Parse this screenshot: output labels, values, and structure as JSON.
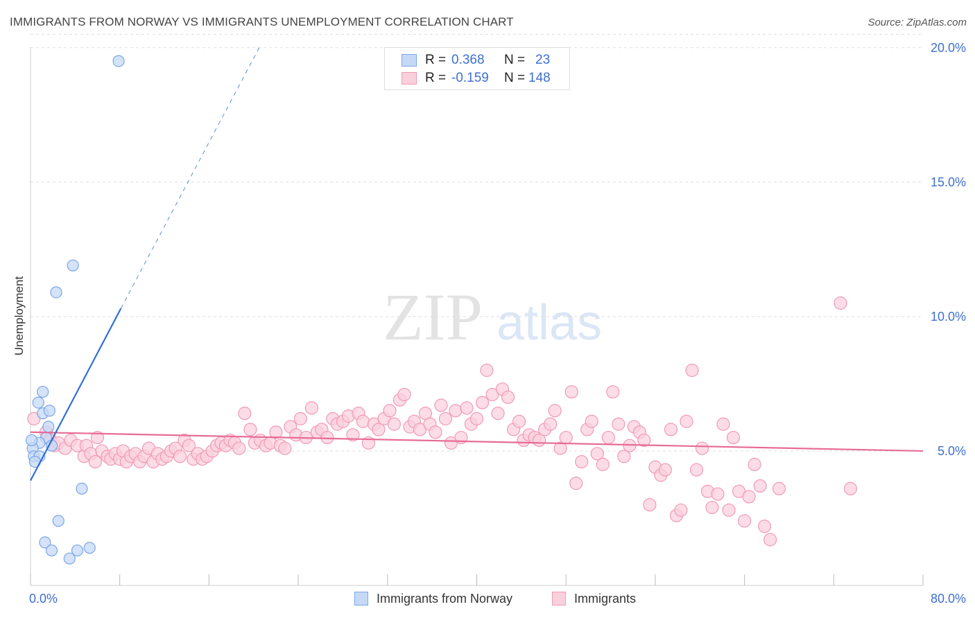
{
  "header": {
    "title": "IMMIGRANTS FROM NORWAY VS IMMIGRANTS UNEMPLOYMENT CORRELATION CHART",
    "source": "Source: ZipAtlas.com"
  },
  "watermark": {
    "zip": "ZIP",
    "atlas": "atlas"
  },
  "legend": {
    "rows": [
      {
        "r_label": "R =",
        "r_value": "0.368",
        "n_label": "N =",
        "n_value": "23",
        "color": "#7aa6e8",
        "fill": "#c5d9f6"
      },
      {
        "r_label": "R =",
        "r_value": "-0.159",
        "n_label": "N =",
        "n_value": "148",
        "color": "#f09ab5",
        "fill": "#fbd0dd"
      }
    ],
    "bottom": [
      {
        "label": "Immigrants from Norway"
      },
      {
        "label": "Immigrants"
      }
    ]
  },
  "colors": {
    "blue_stroke": "#7aa6e8",
    "blue_fill": "#c5d9f6",
    "blue_line": "#2f6fd6",
    "pink_stroke": "#f09ab5",
    "pink_fill": "#fbd0dd",
    "pink_line": "#e76b96",
    "grid": "#dddddd",
    "axis_text": "#3e6fd0"
  },
  "chart_data": {
    "type": "scatter",
    "title": "IMMIGRANTS FROM NORWAY VS IMMIGRANTS UNEMPLOYMENT CORRELATION CHART",
    "xlabel": "",
    "ylabel": "Unemployment",
    "xlim": [
      0,
      80
    ],
    "ylim": [
      0,
      21
    ],
    "x_tick_labels": [
      "0.0%",
      "80.0%"
    ],
    "y_ticks": [
      5,
      10,
      15,
      20
    ],
    "y_tick_labels": [
      "5.0%",
      "10.0%",
      "15.0%",
      "20.0%"
    ],
    "grid": true,
    "legend_position": "top-center",
    "series": [
      {
        "name": "Immigrants from Norway",
        "r": 0.368,
        "n": 23,
        "points": [
          [
            7.9,
            19.5
          ],
          [
            3.8,
            11.9
          ],
          [
            2.3,
            10.9
          ],
          [
            1.1,
            7.2
          ],
          [
            0.7,
            6.8
          ],
          [
            1.1,
            6.4
          ],
          [
            1.7,
            6.5
          ],
          [
            1.6,
            5.9
          ],
          [
            1.4,
            5.5
          ],
          [
            0.8,
            5.3
          ],
          [
            1.9,
            5.2
          ],
          [
            0.2,
            5.1
          ],
          [
            0.3,
            4.8
          ],
          [
            0.8,
            4.8
          ],
          [
            0.4,
            4.6
          ],
          [
            4.6,
            3.6
          ],
          [
            2.5,
            2.4
          ],
          [
            1.3,
            1.6
          ],
          [
            1.9,
            1.3
          ],
          [
            4.2,
            1.3
          ],
          [
            5.3,
            1.4
          ],
          [
            3.5,
            1.0
          ],
          [
            0.1,
            5.4
          ]
        ],
        "trend": {
          "x": [
            0,
            8.1
          ],
          "y": [
            3.9,
            10.3
          ]
        },
        "trend_dashed": {
          "x": [
            8.1,
            20.5
          ],
          "y": [
            10.3,
            20.0
          ]
        }
      },
      {
        "name": "Immigrants",
        "r": -0.159,
        "n": 148,
        "points": [
          [
            0.3,
            6.2
          ],
          [
            1.4,
            5.7
          ],
          [
            1.8,
            5.4
          ],
          [
            2.2,
            5.2
          ],
          [
            2.5,
            5.3
          ],
          [
            3.1,
            5.1
          ],
          [
            3.6,
            5.4
          ],
          [
            4.2,
            5.2
          ],
          [
            4.8,
            4.8
          ],
          [
            5.0,
            5.2
          ],
          [
            5.4,
            4.9
          ],
          [
            5.8,
            4.6
          ],
          [
            6.0,
            5.5
          ],
          [
            6.4,
            5.0
          ],
          [
            6.9,
            4.8
          ],
          [
            7.2,
            4.7
          ],
          [
            7.6,
            4.9
          ],
          [
            8.0,
            4.7
          ],
          [
            8.3,
            5.0
          ],
          [
            8.6,
            4.6
          ],
          [
            9.0,
            4.8
          ],
          [
            9.4,
            4.9
          ],
          [
            9.8,
            4.6
          ],
          [
            10.2,
            4.8
          ],
          [
            10.6,
            5.1
          ],
          [
            11.0,
            4.6
          ],
          [
            11.4,
            4.9
          ],
          [
            11.8,
            4.7
          ],
          [
            12.2,
            4.8
          ],
          [
            12.6,
            5.0
          ],
          [
            13.0,
            5.1
          ],
          [
            13.4,
            4.8
          ],
          [
            13.8,
            5.4
          ],
          [
            14.2,
            5.2
          ],
          [
            14.6,
            4.7
          ],
          [
            15.0,
            4.9
          ],
          [
            15.4,
            4.7
          ],
          [
            15.8,
            4.8
          ],
          [
            16.3,
            5.0
          ],
          [
            16.7,
            5.2
          ],
          [
            17.1,
            5.3
          ],
          [
            17.5,
            5.2
          ],
          [
            17.9,
            5.4
          ],
          [
            18.3,
            5.3
          ],
          [
            18.7,
            5.1
          ],
          [
            19.2,
            6.4
          ],
          [
            19.7,
            5.8
          ],
          [
            20.1,
            5.3
          ],
          [
            20.6,
            5.4
          ],
          [
            21.1,
            5.2
          ],
          [
            21.5,
            5.3
          ],
          [
            22.0,
            5.7
          ],
          [
            22.4,
            5.2
          ],
          [
            22.8,
            5.1
          ],
          [
            23.3,
            5.9
          ],
          [
            23.8,
            5.6
          ],
          [
            24.2,
            6.2
          ],
          [
            24.7,
            5.5
          ],
          [
            25.2,
            6.6
          ],
          [
            25.7,
            5.7
          ],
          [
            26.1,
            5.8
          ],
          [
            26.6,
            5.5
          ],
          [
            27.1,
            6.2
          ],
          [
            27.5,
            6.0
          ],
          [
            28.0,
            6.1
          ],
          [
            28.5,
            6.3
          ],
          [
            28.9,
            5.6
          ],
          [
            29.4,
            6.4
          ],
          [
            29.8,
            6.1
          ],
          [
            30.3,
            5.3
          ],
          [
            30.8,
            6.0
          ],
          [
            31.2,
            5.8
          ],
          [
            31.7,
            6.2
          ],
          [
            32.2,
            6.5
          ],
          [
            32.6,
            6.0
          ],
          [
            33.1,
            6.9
          ],
          [
            33.5,
            7.1
          ],
          [
            34.0,
            5.9
          ],
          [
            34.4,
            6.1
          ],
          [
            34.9,
            5.8
          ],
          [
            35.4,
            6.4
          ],
          [
            35.8,
            6.0
          ],
          [
            36.3,
            5.7
          ],
          [
            36.8,
            6.7
          ],
          [
            37.2,
            6.2
          ],
          [
            37.7,
            5.3
          ],
          [
            38.1,
            6.5
          ],
          [
            38.6,
            5.5
          ],
          [
            39.1,
            6.6
          ],
          [
            39.5,
            6.0
          ],
          [
            40.0,
            6.2
          ],
          [
            40.5,
            6.8
          ],
          [
            40.9,
            8.0
          ],
          [
            41.4,
            7.1
          ],
          [
            41.9,
            6.4
          ],
          [
            42.3,
            7.3
          ],
          [
            42.8,
            7.0
          ],
          [
            43.3,
            5.8
          ],
          [
            43.8,
            6.1
          ],
          [
            44.2,
            5.4
          ],
          [
            44.7,
            5.6
          ],
          [
            45.2,
            5.5
          ],
          [
            45.6,
            5.4
          ],
          [
            46.1,
            5.8
          ],
          [
            46.6,
            6.0
          ],
          [
            47.0,
            6.5
          ],
          [
            47.5,
            5.1
          ],
          [
            48.0,
            5.5
          ],
          [
            48.5,
            7.2
          ],
          [
            48.9,
            3.8
          ],
          [
            49.4,
            4.6
          ],
          [
            49.9,
            5.8
          ],
          [
            50.3,
            6.1
          ],
          [
            50.8,
            4.9
          ],
          [
            51.3,
            4.5
          ],
          [
            51.8,
            5.5
          ],
          [
            52.2,
            7.2
          ],
          [
            52.7,
            6.0
          ],
          [
            53.2,
            4.8
          ],
          [
            53.7,
            5.2
          ],
          [
            54.1,
            5.9
          ],
          [
            54.6,
            5.7
          ],
          [
            55.0,
            5.4
          ],
          [
            55.5,
            3.0
          ],
          [
            56.0,
            4.4
          ],
          [
            56.5,
            4.1
          ],
          [
            56.9,
            4.3
          ],
          [
            57.4,
            5.8
          ],
          [
            57.9,
            2.6
          ],
          [
            58.3,
            2.8
          ],
          [
            58.8,
            6.1
          ],
          [
            59.3,
            8.0
          ],
          [
            59.7,
            4.3
          ],
          [
            60.2,
            5.1
          ],
          [
            60.7,
            3.5
          ],
          [
            61.1,
            2.9
          ],
          [
            61.6,
            3.4
          ],
          [
            62.1,
            6.0
          ],
          [
            62.6,
            2.8
          ],
          [
            63.0,
            5.5
          ],
          [
            63.5,
            3.5
          ],
          [
            64.0,
            2.4
          ],
          [
            64.4,
            3.3
          ],
          [
            64.9,
            4.5
          ],
          [
            65.4,
            3.7
          ],
          [
            65.8,
            2.2
          ],
          [
            66.3,
            1.7
          ],
          [
            72.6,
            10.5
          ],
          [
            73.5,
            3.6
          ],
          [
            67.1,
            3.6
          ]
        ],
        "trend": {
          "x": [
            0,
            80
          ],
          "y": [
            5.7,
            5.0
          ]
        }
      }
    ]
  }
}
